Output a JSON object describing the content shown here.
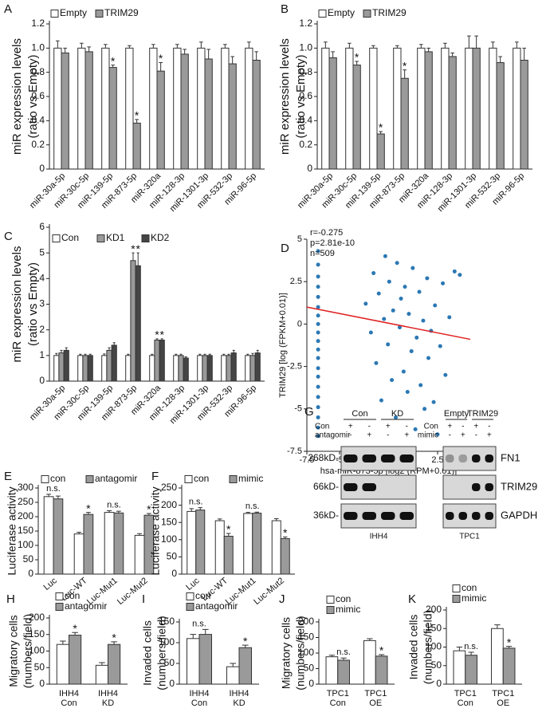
{
  "chart_data": [
    {
      "type": "bar",
      "panel": "A",
      "ylabel": [
        "miR expression levels",
        "(ratio vs Empty)"
      ],
      "categories": [
        "miR-30a-5p",
        "miR-30c-5p",
        "miR-139-5p",
        "miR-873-5p",
        "miR-320a",
        "miR-128-3p",
        "miR-1301-3p",
        "miR-532-3p",
        "miR-96-5p"
      ],
      "series": [
        {
          "name": "Empty",
          "color": "#ffffff",
          "values": [
            1.0,
            1.0,
            1.0,
            1.0,
            1.0,
            1.0,
            1.0,
            1.0,
            1.0
          ],
          "errors": [
            0.06,
            0.04,
            0.03,
            0.02,
            0.03,
            0.03,
            0.05,
            0.03,
            0.05
          ]
        },
        {
          "name": "TRIM29",
          "color": "#9a9a9a",
          "values": [
            0.96,
            0.97,
            0.84,
            0.38,
            0.81,
            0.95,
            0.91,
            0.87,
            0.9
          ],
          "errors": [
            0.04,
            0.04,
            0.02,
            0.03,
            0.07,
            0.04,
            0.08,
            0.06,
            0.07
          ]
        }
      ],
      "ylim": [
        0,
        1.2
      ],
      "yticks": [
        0,
        0.2,
        0.4,
        0.6,
        0.8,
        {
          "value": 1,
          "label": "1.0"
        },
        1.2
      ],
      "legend": "top-left",
      "annotations": [
        {
          "text": "*",
          "category": "miR-139-5p",
          "series": "TRIM29"
        },
        {
          "text": "*",
          "category": "miR-873-5p",
          "series": "TRIM29"
        },
        {
          "text": "*",
          "category": "miR-320a",
          "series": "TRIM29"
        }
      ]
    },
    {
      "type": "bar",
      "panel": "B",
      "ylabel": [
        "miR expression levels",
        "(ratio vs Empty)"
      ],
      "categories": [
        "miR-30a-5p",
        "miR-30c-5p",
        "miR-139-5p",
        "miR-873-5p",
        "miR-320a",
        "miR-128-3p",
        "miR-1301-3p",
        "miR-532-3p",
        "miR-96-5p"
      ],
      "series": [
        {
          "name": "Empty",
          "color": "#ffffff",
          "values": [
            1.0,
            1.0,
            1.0,
            1.0,
            1.0,
            1.0,
            1.0,
            1.0,
            1.0
          ],
          "errors": [
            0.05,
            0.04,
            0.02,
            0.02,
            0.03,
            0.04,
            0.1,
            0.05,
            0.05
          ]
        },
        {
          "name": "TRIM29",
          "color": "#9a9a9a",
          "values": [
            0.92,
            0.86,
            0.29,
            0.75,
            0.97,
            0.93,
            1.0,
            0.88,
            0.9
          ],
          "errors": [
            0.05,
            0.03,
            0.02,
            0.07,
            0.03,
            0.03,
            0.1,
            0.05,
            0.1
          ]
        }
      ],
      "ylim": [
        0,
        1.2
      ],
      "yticks": [
        0,
        0.2,
        0.4,
        0.6,
        0.8,
        {
          "value": 1,
          "label": "1.0"
        },
        1.2
      ],
      "legend": "top-left",
      "annotations": [
        {
          "text": "*",
          "category": "miR-30c-5p",
          "series": "TRIM29"
        },
        {
          "text": "*",
          "category": "miR-139-5p",
          "series": "TRIM29"
        },
        {
          "text": "*",
          "category": "miR-873-5p",
          "series": "TRIM29"
        }
      ]
    },
    {
      "type": "bar",
      "panel": "C",
      "ylabel": [
        "miR expression levels",
        "(ratio vs Empty)"
      ],
      "categories": [
        "miR-30a-5p",
        "miR-30c-5p",
        "miR-139-5p",
        "miR-873-5p",
        "miR-320a",
        "miR-128-3p",
        "miR-1301-3p",
        "miR-532-3p",
        "miR-96-5p"
      ],
      "series": [
        {
          "name": "Con",
          "color": "#ffffff",
          "values": [
            1.0,
            1.0,
            1.0,
            1.0,
            1.0,
            1.0,
            1.0,
            1.0,
            1.0
          ],
          "errors": [
            0.08,
            0.05,
            0.06,
            0.05,
            0.05,
            0.05,
            0.05,
            0.05,
            0.05
          ]
        },
        {
          "name": "KD1",
          "color": "#9a9a9a",
          "values": [
            1.1,
            1.0,
            1.2,
            4.7,
            1.6,
            1.0,
            1.0,
            1.0,
            1.0
          ],
          "errors": [
            0.1,
            0.05,
            0.1,
            0.3,
            0.05,
            0.05,
            0.05,
            0.05,
            0.08
          ]
        },
        {
          "name": "KD2",
          "color": "#454545",
          "values": [
            1.2,
            1.0,
            1.4,
            4.5,
            1.6,
            0.9,
            1.0,
            1.1,
            1.1
          ],
          "errors": [
            0.1,
            0.05,
            0.1,
            0.5,
            0.05,
            0.05,
            0.05,
            0.1,
            0.1
          ]
        }
      ],
      "ylim": [
        0,
        6
      ],
      "yticks": [
        0,
        1,
        2,
        3,
        4,
        5,
        6
      ],
      "legend": "top-left",
      "annotations": [
        {
          "text": "*",
          "category": "miR-873-5p",
          "series": "KD1"
        },
        {
          "text": "*",
          "category": "miR-873-5p",
          "series": "KD2"
        },
        {
          "text": "*",
          "category": "miR-320a",
          "series": "KD1"
        },
        {
          "text": "*",
          "category": "miR-320a",
          "series": "KD2"
        }
      ]
    },
    {
      "type": "scatter",
      "panel": "D",
      "xlabel": "hsa-miR-873-5p [log2 (RPM+0.01)]",
      "ylabel": "TRIM29 [log (FPKM+0.01)]",
      "stats": [
        "r=-0.275",
        "p=2.81e-10",
        "n=509"
      ],
      "color": "#2b78b4",
      "x": [
        -6.64,
        -6.64,
        -6.64,
        -6.64,
        -6.64,
        -6.64,
        -6.64,
        -6.64,
        -6.64,
        -6.64,
        -6.64,
        -6.64,
        -6.64,
        -6.64,
        -6.64,
        -6.64,
        -6.64,
        -6.64,
        -6.64,
        -6.64,
        -3.0,
        -2.6,
        -2.4,
        -2.2,
        -2.0,
        -1.8,
        -1.6,
        -1.5,
        -1.3,
        -1.2,
        -1.0,
        -0.9,
        -0.7,
        -0.6,
        -0.4,
        -0.3,
        -0.1,
        0.0,
        0.2,
        0.3,
        0.5,
        0.6,
        0.8,
        0.9,
        1.1,
        1.2,
        1.4,
        1.5,
        1.7,
        1.8,
        2.0,
        2.2,
        2.3,
        2.5,
        2.7,
        2.9,
        3.1,
        3.4,
        3.8,
        4.2
      ],
      "y": [
        4.3,
        3.5,
        2.8,
        2.2,
        1.6,
        1.0,
        0.5,
        0.0,
        -0.5,
        -1.0,
        -1.5,
        -2.0,
        -2.6,
        -3.1,
        -3.7,
        -4.3,
        -4.9,
        -5.5,
        -6.1,
        -6.6,
        1.2,
        -0.5,
        3.0,
        -2.3,
        1.8,
        -4.5,
        0.3,
        4.0,
        -1.2,
        2.5,
        -3.3,
        0.8,
        -5.5,
        3.6,
        -0.2,
        1.5,
        -2.8,
        2.2,
        -4.0,
        0.6,
        -1.6,
        3.3,
        -6.2,
        -0.8,
        1.9,
        -3.6,
        0.2,
        -5.0,
        2.7,
        -2.0,
        -0.4,
        -4.6,
        1.1,
        -6.5,
        -1.3,
        2.4,
        -3.0,
        0.4,
        3.1,
        2.9
      ],
      "trend_line": {
        "color": "#e02020",
        "x": [
          -7.5,
          5
        ],
        "y": [
          1.0,
          -0.9
        ]
      },
      "xlim": [
        -7.5,
        5
      ],
      "xticks": [
        -7.5,
        -5,
        -2.5,
        0,
        2.5,
        5
      ],
      "ylim": [
        -7.5,
        5
      ],
      "yticks": [
        -7.5,
        -5,
        -2.5,
        0,
        2.5,
        5
      ]
    },
    {
      "type": "bar",
      "panel": "E",
      "ylabel": [
        "Luciferase activity"
      ],
      "categories": [
        "Luc",
        "Luc-WT",
        "Luc-Mut1",
        "Luc-Mut2"
      ],
      "series": [
        {
          "name": "con",
          "color": "#ffffff",
          "values": [
            270,
            140,
            215,
            135
          ],
          "errors": [
            8,
            6,
            6,
            6
          ]
        },
        {
          "name": "antagomir",
          "color": "#9a9a9a",
          "values": [
            262,
            208,
            213,
            205
          ],
          "errors": [
            10,
            7,
            6,
            6
          ]
        }
      ],
      "ylim": [
        0,
        300
      ],
      "yticks": [
        0,
        50,
        100,
        150,
        200,
        250,
        300
      ],
      "legend": "top-left",
      "annotations": [
        {
          "text": "n.s.",
          "category": "Luc"
        },
        {
          "text": "*",
          "category": "Luc-WT",
          "series": "antagomir"
        },
        {
          "text": "n.s.",
          "category": "Luc-Mut1"
        },
        {
          "text": "*",
          "category": "Luc-Mut2",
          "series": "antagomir"
        }
      ]
    },
    {
      "type": "bar",
      "panel": "F",
      "ylabel": [
        "Luciferase activity"
      ],
      "categories": [
        "Luc",
        "Luc-WT",
        "Luc-Mut1",
        "Luc-Mut2"
      ],
      "series": [
        {
          "name": "con",
          "color": "#ffffff",
          "values": [
            182,
            155,
            176,
            155
          ],
          "errors": [
            8,
            5,
            3,
            6
          ]
        },
        {
          "name": "mimic",
          "color": "#9a9a9a",
          "values": [
            186,
            110,
            177,
            103
          ],
          "errors": [
            7,
            8,
            3,
            5
          ]
        }
      ],
      "ylim": [
        0,
        250
      ],
      "yticks": [
        0,
        50,
        100,
        150,
        200,
        250
      ],
      "legend": "top-left",
      "annotations": [
        {
          "text": "n.s.",
          "category": "Luc"
        },
        {
          "text": "*",
          "category": "Luc-WT",
          "series": "mimic"
        },
        {
          "text": "n.s.",
          "category": "Luc-Mut1"
        },
        {
          "text": "*",
          "category": "Luc-Mut2",
          "series": "mimic"
        }
      ]
    },
    {
      "type": "bar",
      "panel": "H",
      "ylabel": [
        "Migratory cells",
        "(numbers/field)"
      ],
      "categories": [
        [
          "IHH4",
          "Con"
        ],
        [
          "IHH4",
          "KD"
        ]
      ],
      "series": [
        {
          "name": "con",
          "color": "#ffffff",
          "values": [
            120,
            57
          ],
          "errors": [
            10,
            8
          ]
        },
        {
          "name": "antagomir",
          "color": "#9a9a9a",
          "values": [
            148,
            120
          ],
          "errors": [
            8,
            8
          ]
        }
      ],
      "ylim": [
        0,
        200
      ],
      "yticks": [
        0,
        50,
        100,
        150,
        200
      ],
      "legend": "top-left",
      "annotations": [
        {
          "text": "*",
          "category": [
            "IHH4",
            "Con"
          ],
          "series": "antagomir"
        },
        {
          "text": "*",
          "category": [
            "IHH4",
            "KD"
          ],
          "series": "antagomir"
        }
      ]
    },
    {
      "type": "bar",
      "panel": "I",
      "ylabel": [
        "Invaded cells",
        "(numbers/field)"
      ],
      "categories": [
        [
          "IHH4",
          "Con"
        ],
        [
          "IHH4",
          "KD"
        ]
      ],
      "series": [
        {
          "name": "con",
          "color": "#ffffff",
          "values": [
            110,
            42
          ],
          "errors": [
            10,
            8
          ]
        },
        {
          "name": "antagomir",
          "color": "#9a9a9a",
          "values": [
            120,
            88
          ],
          "errors": [
            12,
            6
          ]
        }
      ],
      "ylim": [
        0,
        150
      ],
      "yticks": [
        0,
        50,
        100,
        150
      ],
      "legend": "top-left",
      "annotations": [
        {
          "text": "n.s.",
          "category": [
            "IHH4",
            "Con"
          ]
        },
        {
          "text": "*",
          "category": [
            "IHH4",
            "KD"
          ],
          "series": "antagomir"
        }
      ]
    },
    {
      "type": "bar",
      "panel": "J",
      "ylabel": [
        "Migratory cells",
        "(numbers/field)"
      ],
      "categories": [
        [
          "TPC1",
          "Con"
        ],
        [
          "TPC1",
          "OE"
        ]
      ],
      "series": [
        {
          "name": "con",
          "color": "#ffffff",
          "values": [
            88,
            140
          ],
          "errors": [
            5,
            6
          ]
        },
        {
          "name": "mimic",
          "color": "#9a9a9a",
          "values": [
            77,
            90
          ],
          "errors": [
            7,
            5
          ]
        }
      ],
      "ylim": [
        0,
        200
      ],
      "yticks": [
        0,
        50,
        100,
        150,
        200
      ],
      "legend": "top-left",
      "annotations": [
        {
          "text": "n.s.",
          "category": [
            "TPC1",
            "Con"
          ],
          "series": "mimic"
        },
        {
          "text": "*",
          "category": [
            "TPC1",
            "OE"
          ],
          "series": "mimic"
        }
      ]
    },
    {
      "type": "bar",
      "panel": "K",
      "ylabel": [
        "Invaded cells",
        "(numbers/field)"
      ],
      "categories": [
        [
          "TPC1",
          "Con"
        ],
        [
          "TPC1",
          "OE"
        ]
      ],
      "series": [
        {
          "name": "con",
          "color": "#ffffff",
          "values": [
            90,
            150
          ],
          "errors": [
            10,
            10
          ]
        },
        {
          "name": "mimic",
          "color": "#9a9a9a",
          "values": [
            78,
            97
          ],
          "errors": [
            8,
            5
          ]
        }
      ],
      "ylim": [
        0,
        200
      ],
      "yticks": [
        0,
        50,
        100,
        150,
        200
      ],
      "legend": "top-left",
      "annotations": [
        {
          "text": "n.s.",
          "category": [
            "TPC1",
            "Con"
          ],
          "series": "mimic"
        },
        {
          "text": "*",
          "category": [
            "TPC1",
            "OE"
          ],
          "series": "mimic"
        }
      ]
    }
  ],
  "blot": {
    "panel": "G",
    "sizes": [
      "268kD-",
      "66kD-",
      "36kD-"
    ],
    "proteins": [
      "FN1",
      "TRIM29",
      "GAPDH"
    ],
    "left": {
      "groups": [
        "Con",
        "KD"
      ],
      "rows": [
        {
          "label": "Con",
          "signs": [
            "+",
            "-",
            "+",
            "-"
          ]
        },
        {
          "label": "antagomir",
          "signs": [
            "-",
            "+",
            "-",
            "+"
          ]
        }
      ],
      "cell": "IHH4"
    },
    "right": {
      "groups": [
        "Empty",
        "TRIM29"
      ],
      "rows": [
        {
          "label": "Con",
          "signs": [
            "+",
            "-",
            "+",
            "-"
          ]
        },
        {
          "label": "mimic",
          "signs": [
            "-",
            "+",
            "-",
            "+"
          ]
        }
      ],
      "cell": "TPC1"
    }
  }
}
